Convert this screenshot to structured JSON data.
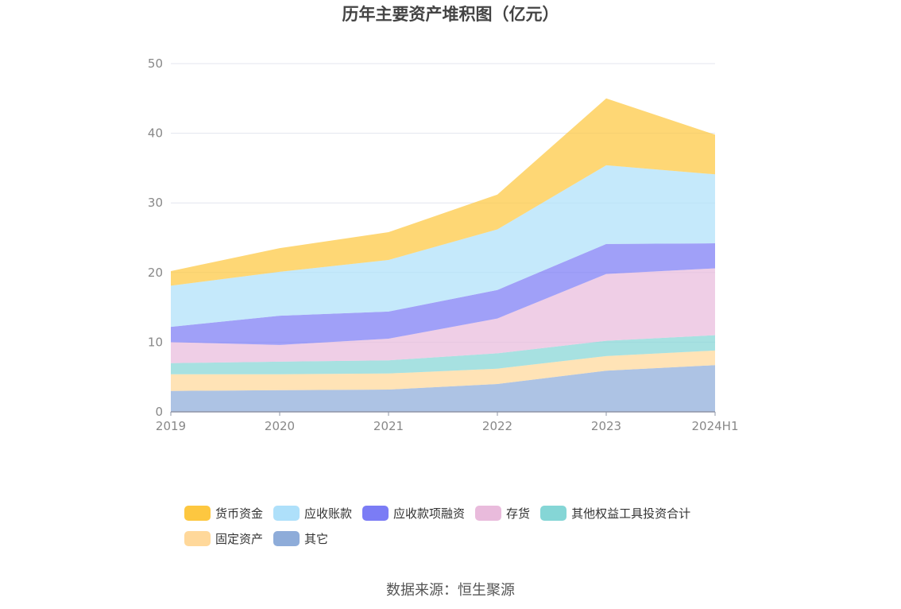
{
  "chart_data": {
    "type": "area",
    "stacked": true,
    "title": "历年主要资产堆积图（亿元）",
    "xlabel": "",
    "ylabel": "",
    "ylim": [
      0,
      50
    ],
    "yticks": [
      0,
      10,
      20,
      30,
      40,
      50
    ],
    "grid": true,
    "legend_position": "bottom",
    "x": [
      "2019",
      "2020",
      "2021",
      "2022",
      "2023",
      "2024H1"
    ],
    "series": [
      {
        "name": "其它",
        "color": "#8eacd9",
        "values": [
          3.0,
          3.1,
          3.2,
          4.0,
          5.9,
          6.7
        ]
      },
      {
        "name": "固定资产",
        "color": "#ffd89a",
        "values": [
          2.4,
          2.3,
          2.3,
          2.2,
          2.1,
          2.1
        ]
      },
      {
        "name": "其他权益工具投资合计",
        "color": "#85d6d6",
        "values": [
          1.6,
          1.8,
          1.9,
          2.2,
          2.2,
          2.2
        ]
      },
      {
        "name": "存货",
        "color": "#e9bbdc",
        "values": [
          3.0,
          2.4,
          3.1,
          5.0,
          9.6,
          9.6
        ]
      },
      {
        "name": "应收款项融资",
        "color": "#7b7cf5",
        "values": [
          2.2,
          4.2,
          3.9,
          4.1,
          4.3,
          3.6
        ]
      },
      {
        "name": "应收账款",
        "color": "#aee0fa",
        "values": [
          5.9,
          6.3,
          7.4,
          8.7,
          11.3,
          9.9
        ]
      },
      {
        "name": "货币资金",
        "color": "#fdc740",
        "values": [
          2.1,
          3.4,
          4.0,
          5.0,
          9.6,
          5.7
        ]
      }
    ]
  },
  "legend": {
    "row1": [
      "货币资金",
      "应收账款",
      "应收款项融资",
      "存货",
      "其他权益工具投资合计"
    ],
    "row2": [
      "固定资产",
      "其它"
    ]
  },
  "source_text": "数据来源：恒生聚源"
}
